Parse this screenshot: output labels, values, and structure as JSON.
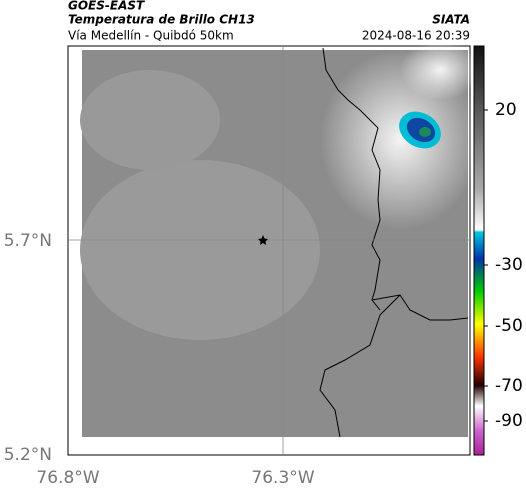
{
  "header": {
    "source": "GOES-EAST",
    "title": "Temperatura de Brillo CH13",
    "agency": "SIATA",
    "subtitle": "Vía Medellín - Quibdó 50km",
    "timestamp": "2024-08-16 20:39"
  },
  "map": {
    "lat_labels": [
      "5.7°N",
      "5.2°N"
    ],
    "lon_labels": [
      "76.8°W",
      "76.3°W"
    ]
  },
  "colorbar": {
    "ticks": [
      20,
      -30,
      -50,
      -70,
      -90
    ]
  }
}
